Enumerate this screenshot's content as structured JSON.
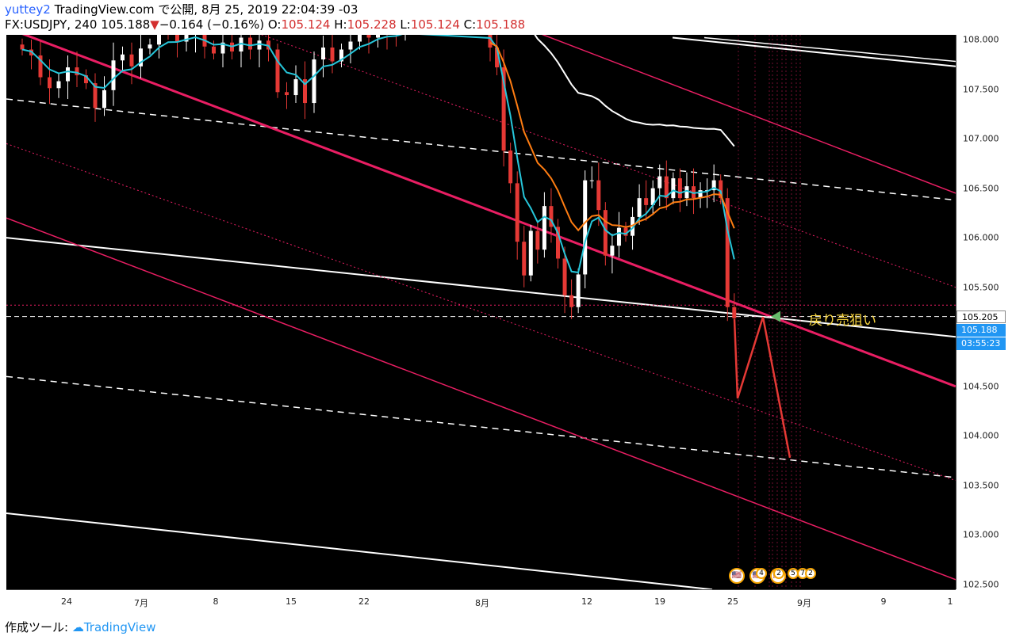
{
  "header": {
    "author": "yuttey2",
    "published": "TradingView.com で公開, 8月 25, 2019 22:04:39 -03",
    "symbol": "FX:USDJPY, 240",
    "last": "105.188",
    "down_arrow": "▼",
    "change": "−0.164 (−0.16%)",
    "o_label": "O:",
    "o_value": "105.124",
    "h_label": "H:",
    "h_value": "105.228",
    "l_label": "L:",
    "l_value": "105.124",
    "c_label": "C:",
    "c_value": "105.188"
  },
  "annotation": {
    "text": "戻り売狙い"
  },
  "price_tags": {
    "price": "105.205",
    "last": "105.188",
    "countdown": "03:55:23"
  },
  "events": {
    "labels": [
      "4",
      "2",
      "5",
      "7",
      "2"
    ]
  },
  "footer": {
    "prefix": "作成ツール:",
    "brand": "TradingView"
  },
  "colors": {
    "background": "#000000",
    "up": "#ffffff",
    "down": "#e53935",
    "ema_fast": "#26c6da",
    "ema_mid": "#ff7d12",
    "ema_slow": "#ffffff",
    "channel": "#e91e63",
    "annotation": "#f5d23b"
  },
  "chart_data": {
    "type": "candlestick",
    "y_range": [
      102.45,
      108.15
    ],
    "y_ticks": [
      "108.000",
      "107.500",
      "107.000",
      "106.500",
      "106.000",
      "105.500",
      "105.205",
      "105.188",
      "104.500",
      "104.000",
      "103.500",
      "103.000",
      "102.500"
    ],
    "x_ticks": [
      "24",
      "7月",
      "8",
      "15",
      "22",
      "8月",
      "12",
      "19",
      "25",
      "9月",
      "9",
      "1"
    ],
    "closes": [
      107.9,
      107.84,
      107.62,
      107.51,
      107.58,
      107.72,
      107.64,
      107.56,
      107.31,
      107.49,
      107.79,
      107.85,
      107.73,
      107.91,
      107.95,
      108.1,
      108.08,
      107.98,
      108.05,
      108.07,
      107.93,
      107.86,
      107.97,
      107.88,
      108.02,
      107.9,
      107.99,
      107.9,
      107.47,
      107.44,
      107.6,
      107.36,
      107.8,
      107.92,
      107.78,
      107.9,
      107.98,
      108.06,
      108.02,
      108.1,
      108.08,
      108.05,
      108.12,
      107.92,
      107.72,
      106.88,
      106.55,
      105.96,
      105.62,
      106.07,
      105.88,
      106.32,
      106.11,
      105.79,
      105.42,
      105.3,
      105.63,
      106.58,
      106.58,
      106.28,
      105.82,
      105.92,
      106.1,
      106.02,
      106.21,
      106.4,
      106.33,
      106.5,
      106.62,
      106.4,
      106.6,
      106.4,
      106.52,
      106.4,
      106.48,
      106.48,
      106.58,
      106.4,
      105.3,
      105.188
    ],
    "series": [
      {
        "name": "EMA fast"
      },
      {
        "name": "EMA mid"
      },
      {
        "name": "EMA slow"
      }
    ]
  }
}
